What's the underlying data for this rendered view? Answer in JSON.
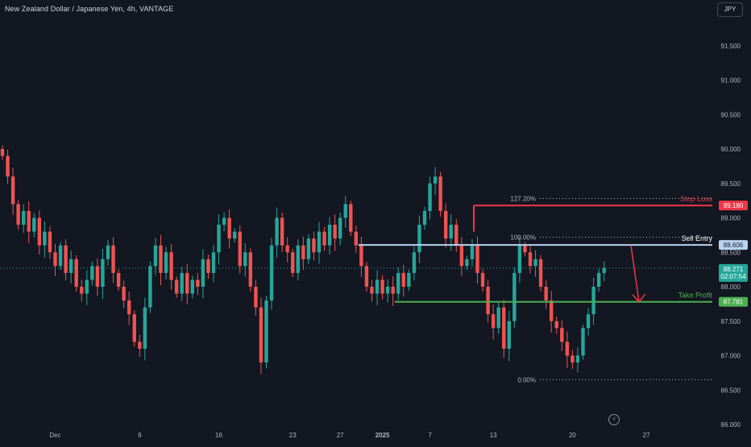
{
  "header": {
    "title": "New Zealand Dollar / Japanese Yen, 4h, VANTAGE",
    "currency_button": "JPY"
  },
  "colors": {
    "background": "#131722",
    "up": "#26a69a",
    "down": "#ef5350",
    "stop_loss": "#f23645",
    "entry": "#b7d3f2",
    "take_profit": "#4caf50",
    "axis_text": "#b2b5be",
    "arrow": "#f23645"
  },
  "chart_data": {
    "type": "candlestick",
    "symbol": "NZDJPY",
    "timeframe": "4h",
    "y_axis": {
      "range": [
        86.0,
        92.0
      ],
      "ticks": [
        "91.500",
        "91.000",
        "90.500",
        "90.000",
        "89.500",
        "89.000",
        "88.500",
        "88.000",
        "87.500",
        "87.000",
        "86.500",
        "86.000"
      ]
    },
    "x_axis": {
      "ticks": [
        {
          "label": "Dec",
          "bar": 10
        },
        {
          "label": "9",
          "bar": 26
        },
        {
          "label": "16",
          "bar": 41
        },
        {
          "label": "23",
          "bar": 55
        },
        {
          "label": "27",
          "bar": 64
        },
        {
          "label": "2025",
          "bar": 72,
          "bold": true
        },
        {
          "label": "7",
          "bar": 81
        },
        {
          "label": "13",
          "bar": 93
        },
        {
          "label": "20",
          "bar": 108
        },
        {
          "label": "27",
          "bar": 122
        }
      ]
    },
    "close_series": [
      89.9,
      89.6,
      89.2,
      88.9,
      89.1,
      88.8,
      89.0,
      88.6,
      88.8,
      88.5,
      88.3,
      88.6,
      88.2,
      88.4,
      88.0,
      87.9,
      88.1,
      88.3,
      88.0,
      88.4,
      88.6,
      88.2,
      88.0,
      87.8,
      87.6,
      87.2,
      87.1,
      87.7,
      88.3,
      88.6,
      88.2,
      88.5,
      88.1,
      87.9,
      88.2,
      87.9,
      88.1,
      88.0,
      88.4,
      88.2,
      88.5,
      88.9,
      89.0,
      88.7,
      88.8,
      88.3,
      88.5,
      88.0,
      87.7,
      86.9,
      87.8,
      88.6,
      89.0,
      88.6,
      88.5,
      88.2,
      88.6,
      88.4,
      88.7,
      88.5,
      88.8,
      88.6,
      88.9,
      88.7,
      89.0,
      89.2,
      88.8,
      88.6,
      88.3,
      88.0,
      87.9,
      88.1,
      87.9,
      88.0,
      87.9,
      88.2,
      88.0,
      88.2,
      88.5,
      88.9,
      89.1,
      89.5,
      89.6,
      89.1,
      88.7,
      88.9,
      88.6,
      88.3,
      88.4,
      88.6,
      88.2,
      88.0,
      87.6,
      87.4,
      87.7,
      87.1,
      87.5,
      88.2,
      88.6,
      88.5,
      88.3,
      88.4,
      88.0,
      87.8,
      87.5,
      87.4,
      87.2,
      87.0,
      86.9,
      87.0,
      87.4,
      87.6,
      88.0,
      88.2,
      88.271
    ],
    "current_price": {
      "value": "88.271",
      "countdown": "02:07:54"
    },
    "levels": [
      {
        "name": "Stop Loss",
        "price": 89.18,
        "price_label": "89.180",
        "fib_label": "127.20%",
        "fib_price": 89.28
      },
      {
        "name": "Sell Entry",
        "price": 88.606,
        "price_label": "88.606",
        "fib_label": "100.00%",
        "fib_price": 88.72
      },
      {
        "name": "Take Profit",
        "price": 87.781,
        "price_label": "87.781"
      },
      {
        "name": "",
        "price": 86.65,
        "fib_label": "0.00%",
        "fib_price": 86.65
      }
    ]
  }
}
